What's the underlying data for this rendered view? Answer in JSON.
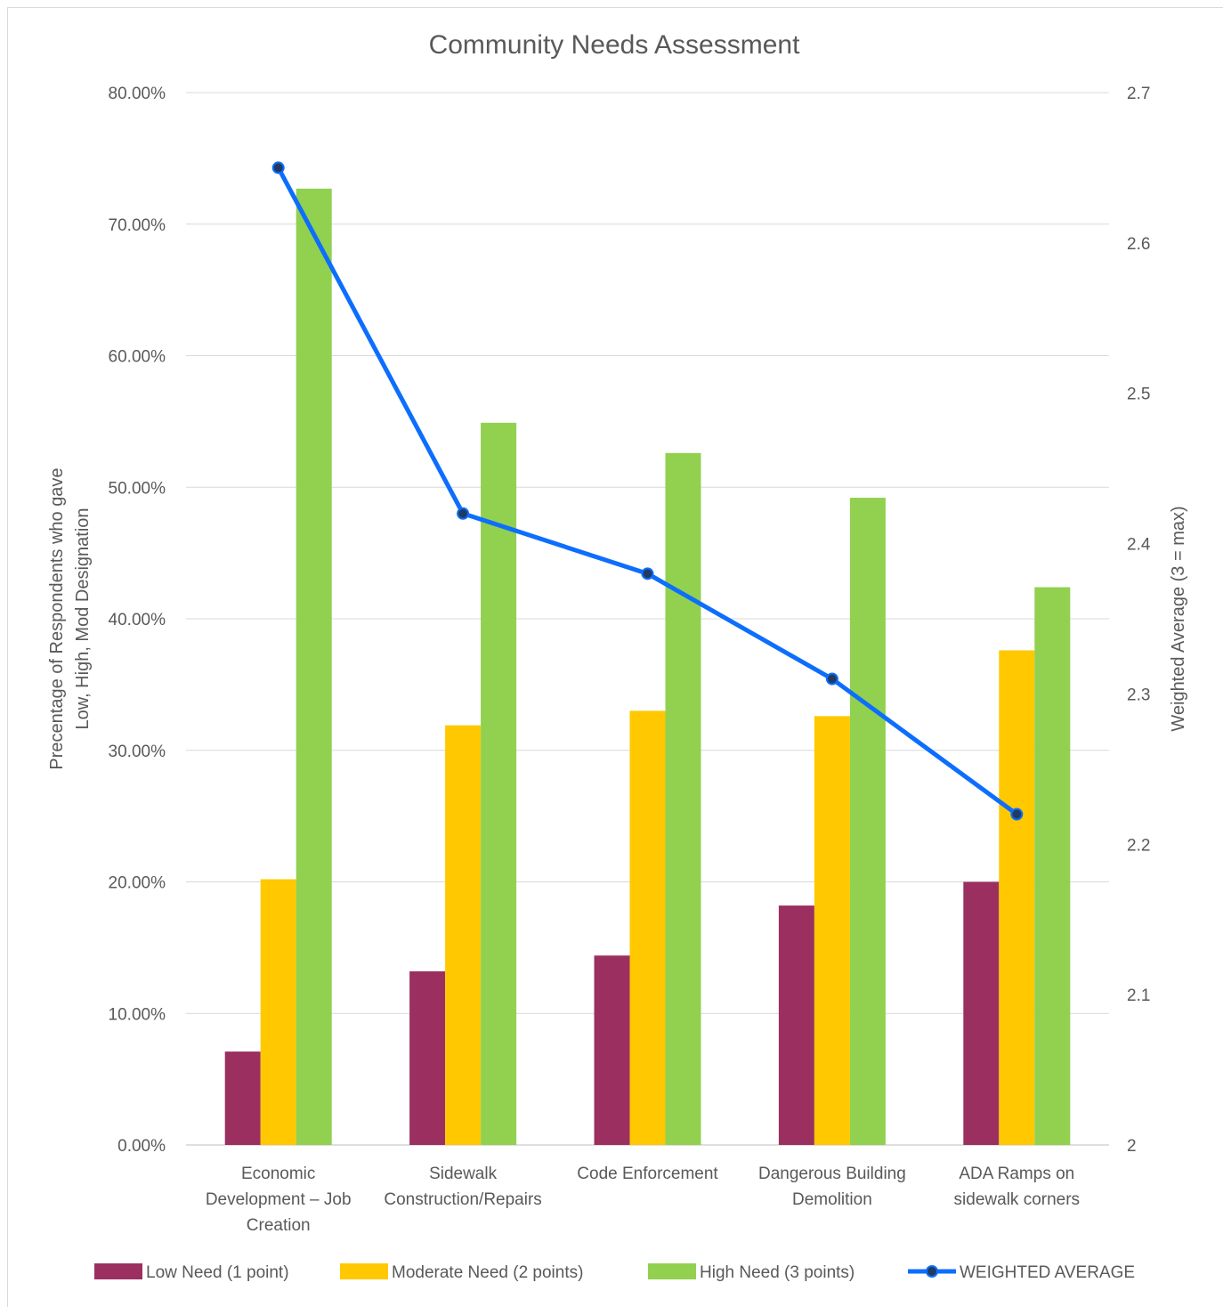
{
  "chart_data": {
    "type": "bar",
    "title": "Community Needs Assessment",
    "ylabel": [
      "Precentage of Respondents who gave",
      "Low, High, Mod Designation"
    ],
    "y2label": "Weighted Average (3 = max)",
    "categories": [
      [
        "Economic",
        "Development – Job",
        "Creation"
      ],
      [
        "Sidewalk",
        "Construction/Repairs"
      ],
      [
        "Code Enforcement"
      ],
      [
        "Dangerous Building",
        "Demolition"
      ],
      [
        "ADA Ramps on",
        "sidewalk corners"
      ]
    ],
    "ylim": [
      0,
      80
    ],
    "yticks": [
      "0.00%",
      "10.00%",
      "20.00%",
      "30.00%",
      "40.00%",
      "50.00%",
      "60.00%",
      "70.00%",
      "80.00%"
    ],
    "y2lim": [
      2,
      2.7
    ],
    "y2ticks": [
      "2",
      "2.1",
      "2.2",
      "2.3",
      "2.4",
      "2.5",
      "2.6",
      "2.7"
    ],
    "grid": true,
    "legend_position": "bottom",
    "series": [
      {
        "name": "Low Need (1 point)",
        "type": "bar",
        "color": "#9b3060",
        "values": [
          7.1,
          13.2,
          14.4,
          18.2,
          20.0
        ]
      },
      {
        "name": "Moderate Need (2 points)",
        "type": "bar",
        "color": "#ffc800",
        "values": [
          20.2,
          31.9,
          33.0,
          32.6,
          37.6
        ]
      },
      {
        "name": "High Need (3 points)",
        "type": "bar",
        "color": "#92d050",
        "values": [
          72.7,
          54.9,
          52.6,
          49.2,
          42.4
        ]
      },
      {
        "name": "WEIGHTED AVERAGE",
        "type": "line",
        "axis": "secondary",
        "color": "#0d6efd",
        "marker_color": "#1f3b63",
        "values": [
          2.65,
          2.42,
          2.38,
          2.31,
          2.22
        ]
      }
    ]
  }
}
